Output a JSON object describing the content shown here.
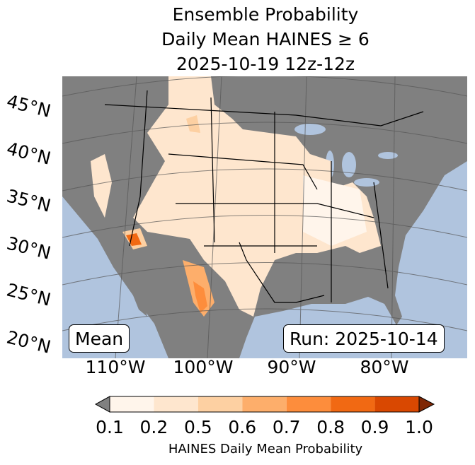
{
  "title": {
    "line1": "Ensemble Probability",
    "line2": "Daily Mean HAINES ≥ 6",
    "line3": "2025-10-19 12z-12z"
  },
  "map": {
    "lat_labels": [
      "45°N",
      "40°N",
      "35°N",
      "30°N",
      "25°N",
      "20°N"
    ],
    "lon_labels": [
      "110°W",
      "100°W",
      "90°W",
      "80°W"
    ],
    "mean_label": "Mean",
    "run_label": "Run: 2025-10-14",
    "ocean_color": "#b0c4de",
    "land_color": "#808080"
  },
  "colorbar": {
    "ticks": [
      "0.1",
      "0.2",
      "0.5",
      "0.6",
      "0.7",
      "0.8",
      "0.9",
      "1.0"
    ],
    "colors": [
      "#fff5eb",
      "#fee6ce",
      "#fdd0a2",
      "#fdae6b",
      "#fd8d3c",
      "#f16913",
      "#d94801"
    ],
    "under_color": "#808080",
    "over_color": "#7f2704",
    "label": "HAINES Daily Mean Probability"
  }
}
